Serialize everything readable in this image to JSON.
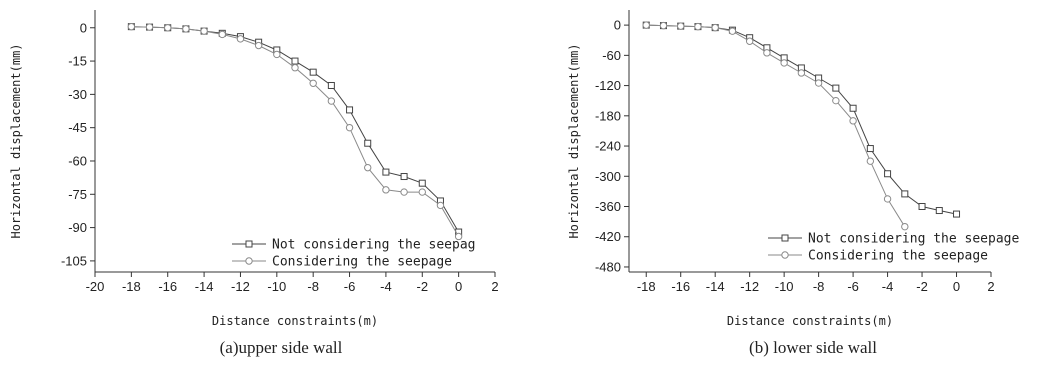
{
  "chart_data": [
    {
      "type": "line",
      "caption": "(a)upper side wall",
      "xlabel": "Distance constraints(m)",
      "ylabel": "Horizontal displacement(mm)",
      "xlim": [
        -20,
        2
      ],
      "ylim": [
        -110,
        8
      ],
      "xticks": [
        -20,
        -18,
        -16,
        -14,
        -12,
        -10,
        -8,
        -6,
        -4,
        -2,
        0,
        2
      ],
      "yticks": [
        0,
        -15,
        -30,
        -45,
        -60,
        -75,
        -90,
        -105
      ],
      "legend_position": "bottom-right",
      "series": [
        {
          "name": "Not considering the seepag",
          "marker": "square",
          "x": [
            -18,
            -17,
            -16,
            -15,
            -14,
            -13,
            -12,
            -11,
            -10,
            -9,
            -8,
            -7,
            -6,
            -5,
            -4,
            -3,
            -2,
            -1,
            0
          ],
          "y": [
            0.5,
            0.3,
            0,
            -0.5,
            -1.5,
            -2.5,
            -4,
            -6.5,
            -10,
            -15,
            -20,
            -26,
            -37,
            -52,
            -65,
            -67,
            -70,
            -78,
            -92
          ]
        },
        {
          "name": "Considering the seepage",
          "marker": "circle",
          "x": [
            -18,
            -17,
            -16,
            -15,
            -14,
            -13,
            -12,
            -11,
            -10,
            -9,
            -8,
            -7,
            -6,
            -5,
            -4,
            -3,
            -2,
            -1,
            0
          ],
          "y": [
            0.5,
            0.3,
            0,
            -0.5,
            -1.5,
            -3,
            -5,
            -8,
            -12,
            -18,
            -25,
            -33,
            -45,
            -63,
            -73,
            -74,
            -74,
            -80,
            -94
          ]
        }
      ]
    },
    {
      "type": "line",
      "caption": "(b) lower side wall",
      "xlabel": "Distance constraints(m)",
      "ylabel": "Horizontal displacement(mm)",
      "xlim": [
        -19,
        2
      ],
      "ylim": [
        -490,
        30
      ],
      "xticks": [
        -18,
        -16,
        -14,
        -12,
        -10,
        -8,
        -6,
        -4,
        -2,
        0,
        2
      ],
      "yticks": [
        0,
        -60,
        -120,
        -180,
        -240,
        -300,
        -360,
        -420,
        -480
      ],
      "legend_position": "bottom-right",
      "series": [
        {
          "name": "Not considering the seepage",
          "marker": "square",
          "x": [
            -18,
            -17,
            -16,
            -15,
            -14,
            -13,
            -12,
            -11,
            -10,
            -9,
            -8,
            -7,
            -6,
            -5,
            -4,
            -3,
            -2,
            -1,
            0
          ],
          "y": [
            0,
            -1,
            -2,
            -3,
            -5,
            -10,
            -25,
            -45,
            -65,
            -85,
            -105,
            -125,
            -165,
            -245,
            -295,
            -335,
            -360,
            -368,
            -375
          ]
        },
        {
          "name": "Considering the seepage",
          "marker": "circle",
          "x": [
            -18,
            -17,
            -16,
            -15,
            -14,
            -13,
            -12,
            -11,
            -10,
            -9,
            -8,
            -7,
            -6,
            -5,
            -4,
            -3
          ],
          "y": [
            0,
            -1,
            -2,
            -3,
            -5,
            -12,
            -32,
            -55,
            -75,
            -95,
            -115,
            -150,
            -190,
            -270,
            -345,
            -400
          ]
        }
      ]
    }
  ]
}
